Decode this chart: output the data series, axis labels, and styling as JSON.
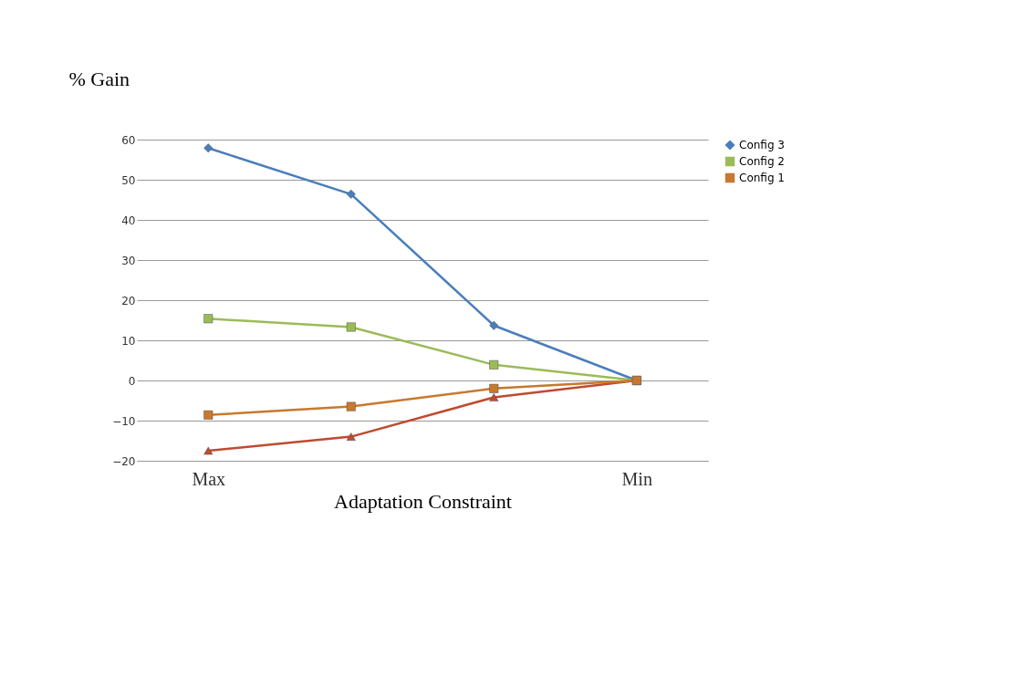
{
  "chart_data": {
    "type": "line",
    "ylabel": "% Gain",
    "xlabel": "Adaptation Constraint",
    "categories": [
      "Max",
      null,
      null,
      "Min"
    ],
    "series": [
      {
        "name": "Config 3",
        "color": "#4a7ebb",
        "marker": "diamond",
        "values": [
          57.9,
          46.4,
          13.7,
          0
        ]
      },
      {
        "name": "Config 2",
        "color": "#9bbb59",
        "marker": "square",
        "values": [
          15.4,
          13.3,
          3.9,
          0
        ]
      },
      {
        "color": "#be4b30",
        "marker": "triangle",
        "values": [
          -17.5,
          -14,
          -4.2,
          0
        ]
      },
      {
        "name": "Config 1",
        "color": "#c8782f",
        "marker": "square",
        "values": [
          -8.6,
          -6.5,
          -2,
          0
        ]
      }
    ],
    "ylim": [
      -20,
      60
    ],
    "yticks": [
      -20,
      -10,
      0,
      10,
      20,
      30,
      40,
      50,
      60
    ],
    "grid": "y",
    "legend": "right",
    "line_style": "solid"
  }
}
